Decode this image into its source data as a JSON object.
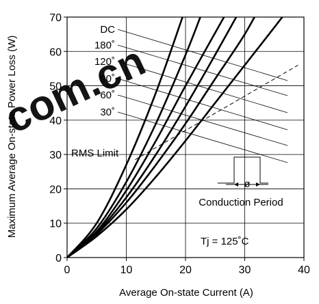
{
  "chart_data": {
    "type": "line",
    "xlabel": "Average On-state Current (A)",
    "ylabel": "Maximum Average On-state Power Loss (W)",
    "xlim": [
      0,
      40
    ],
    "ylim": [
      0,
      70
    ],
    "xticks": [
      0,
      10,
      20,
      30,
      40
    ],
    "yticks": [
      0,
      10,
      20,
      30,
      40,
      50,
      60,
      70
    ],
    "x_tick_labels": [
      "0",
      "10",
      "20",
      "30",
      "40"
    ],
    "y_tick_labels": [
      "0",
      "10",
      "20",
      "30",
      "40",
      "50",
      "60",
      "70"
    ],
    "grid": true,
    "series": [
      {
        "name": "DC",
        "x": [
          0,
          5,
          10,
          15,
          20,
          25,
          30,
          35,
          39
        ],
        "y": [
          0,
          6.2,
          14,
          23.5,
          34,
          45,
          56,
          67,
          76
        ]
      },
      {
        "name": "180°",
        "x": [
          0,
          5,
          10,
          15,
          20,
          25,
          30,
          33.5
        ],
        "y": [
          0,
          6.8,
          16,
          27,
          39,
          52,
          65,
          76
        ]
      },
      {
        "name": "120°",
        "x": [
          0,
          5,
          10,
          15,
          20,
          25,
          30.5
        ],
        "y": [
          0,
          7.2,
          17.5,
          30,
          44,
          59,
          76
        ]
      },
      {
        "name": "90°",
        "x": [
          0,
          5,
          10,
          15,
          20,
          26.5
        ],
        "y": [
          0,
          7.6,
          19.5,
          34,
          50,
          70
        ]
      },
      {
        "name": "60°",
        "x": [
          0,
          5,
          10,
          15,
          20,
          22.5
        ],
        "y": [
          0,
          8.5,
          22,
          39,
          59,
          70
        ]
      },
      {
        "name": "30°",
        "x": [
          0,
          5,
          10,
          15,
          19.5
        ],
        "y": [
          0,
          10,
          27,
          48,
          70
        ]
      }
    ],
    "rms_limit": {
      "label": "RMS Limit",
      "x": [
        11.5,
        39
      ],
      "y": [
        28.5,
        56
      ]
    },
    "annotations": {
      "curve_labels": [
        "DC",
        "180˚",
        "120˚",
        "90˚",
        "60˚",
        "30˚"
      ],
      "inset_symbol": "ø",
      "inset_caption": "Conduction Period",
      "condition": "Tj  = 125˚C"
    },
    "watermark": {
      "text": "com.cn",
      "color": "#e8281e"
    }
  }
}
